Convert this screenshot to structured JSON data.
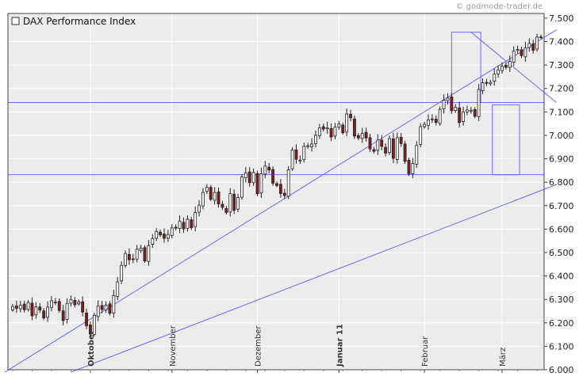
{
  "watermark": "© godmode-trader.de",
  "colors": {
    "background": "#ececec",
    "grid": "#ffffff",
    "frame": "#444444",
    "line": "#6b6bff",
    "candle_up": "#ffffff",
    "candle_down": "#8b1a1a",
    "wick": "#222222"
  },
  "chart_data": {
    "type": "candlestick",
    "title": "DAX Performance Index",
    "legend": {
      "label": "DAX Performance Index",
      "placement": "top-left"
    },
    "ylim": [
      6000,
      7520
    ],
    "yticks": [
      6000,
      6100,
      6200,
      6300,
      6400,
      6500,
      6600,
      6700,
      6800,
      6900,
      7000,
      7100,
      7200,
      7300,
      7400,
      7500
    ],
    "ytick_labels": [
      "6.000",
      "6.100",
      "6.200",
      "6.300",
      "6.400",
      "6.500",
      "6.600",
      "6.700",
      "6.800",
      "6.900",
      "7.000",
      "7.100",
      "7.200",
      "7.300",
      "7.400",
      "7.500"
    ],
    "y_axis_side": "right",
    "grid": true,
    "x_labels": [
      {
        "label": "Oktober",
        "bar": 20,
        "bold": true
      },
      {
        "label": "November",
        "bar": 41,
        "bold": false
      },
      {
        "label": "Dezember",
        "bar": 63,
        "bold": false
      },
      {
        "label": "Januar 11",
        "bar": 84,
        "bold": true
      },
      {
        "label": "Februar",
        "bar": 106,
        "bold": false
      },
      {
        "label": "März",
        "bar": 126,
        "bold": false
      }
    ],
    "bar_count": 137,
    "closes": [
      6270,
      6262,
      6275,
      6256,
      6287,
      6230,
      6268,
      6255,
      6221,
      6267,
      6294,
      6289,
      6253,
      6210,
      6283,
      6299,
      6277,
      6290,
      6246,
      6188,
      6152,
      6232,
      6272,
      6257,
      6276,
      6241,
      6316,
      6375,
      6445,
      6496,
      6469,
      6473,
      6514,
      6519,
      6464,
      6530,
      6560,
      6590,
      6575,
      6561,
      6577,
      6605,
      6604,
      6634,
      6601,
      6642,
      6606,
      6671,
      6702,
      6757,
      6778,
      6727,
      6756,
      6707,
      6693,
      6671,
      6751,
      6680,
      6735,
      6822,
      6840,
      6798,
      6841,
      6751,
      6836,
      6869,
      6852,
      6796,
      6786,
      6752,
      6743,
      6853,
      6938,
      6898,
      6894,
      6953,
      6956,
      6963,
      7000,
      7032,
      7027,
      7032,
      6993,
      7035,
      7048,
      7011,
      7091,
      7075,
      6997,
      6989,
      7008,
      6989,
      6942,
      6932,
      6980,
      6953,
      6924,
      6986,
      6902,
      6990,
      6965,
      6889,
      6835,
      6880,
      6957,
      7037,
      7047,
      7066,
      7070,
      7055,
      7111,
      7150,
      7159,
      7105,
      7120,
      7055,
      7100,
      7108,
      7107,
      7081,
      7196,
      7224,
      7222,
      7226,
      7261,
      7279,
      7295,
      7290,
      7316,
      7359,
      7366,
      7340,
      7373,
      7392,
      7363,
      7419,
      7419
    ],
    "open_high_low_note": "OHLC approximated from the visible candles"
  },
  "overlays": {
    "horizontal_lines": [
      7140,
      6832
    ],
    "trendlines": [
      {
        "from": {
          "bar": -2,
          "value": 5990
        },
        "to": {
          "bar": 140,
          "value": 7450
        }
      },
      {
        "from": {
          "bar": 15,
          "value": 5990
        },
        "to": {
          "bar": 140,
          "value": 6790
        }
      },
      {
        "from": {
          "bar": 118,
          "value": 7440
        },
        "to": {
          "bar": 140,
          "value": 7140
        }
      }
    ],
    "boxes": [
      {
        "bar_from": 113,
        "bar_to": 120.5,
        "value_top": 7440,
        "value_bottom": 7140
      },
      {
        "bar_from": 123.5,
        "bar_to": 130.5,
        "value_top": 7130,
        "value_bottom": 6832
      }
    ]
  }
}
